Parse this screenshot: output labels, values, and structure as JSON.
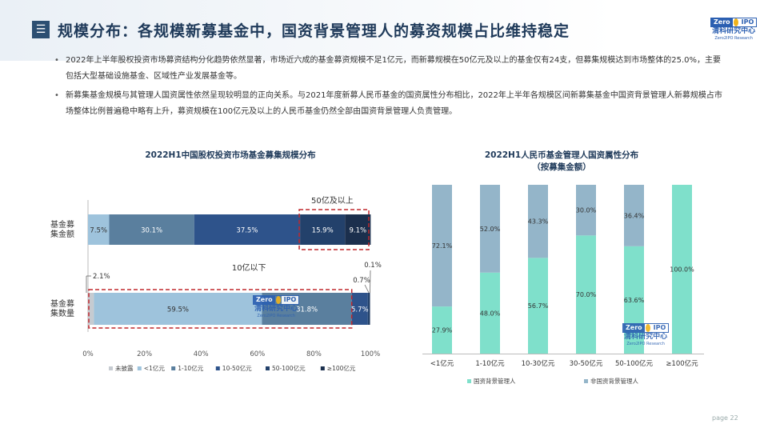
{
  "header": {
    "menu_icon": "menu-icon",
    "title": "规模分布：各规模新募基金中，国资背景管理人的募资规模占比维持稳定",
    "logo": {
      "badge_left": "Zero",
      "badge_right": "IPO",
      "name_cn": "清科研究中心",
      "name_en": "Zero2IPO Research"
    }
  },
  "bullets": [
    "2022年上半年股权投资市场募资结构分化趋势依然显著，市场近六成的基金募资规模不足1亿元，而新募规模在50亿元及以上的基金仅有24支，但募集规模达到市场整体的25.0%，主要包括大型基础设施基金、区域性产业发展基金等。",
    "新募集基金规模与其管理人国资属性依然呈现较明显的正向关系。与2021年度新募人民币基金的国资属性分布相比，2022年上半年各规模区间新募集基金中国资背景管理人新募规模占市场整体比例普遍稳中略有上升，募资规模在100亿元及以上的人民币基金仍然全部由国资背景管理人负责管理。"
  ],
  "footer": {
    "page_label": "page",
    "page_number": "22"
  },
  "chart_data": [
    {
      "type": "bar",
      "orientation": "horizontal",
      "stacked": true,
      "title": "2022H1中国股权投资市场基金募集规模分布",
      "categories": [
        "基金募集金额",
        "基金募集数量"
      ],
      "category_labels": [
        [
          "基金募",
          "集金额"
        ],
        [
          "基金募",
          "集数量"
        ]
      ],
      "series": [
        {
          "name": "未披露",
          "values": [
            0.0,
            2.1
          ],
          "color": "#c6cbd1"
        },
        {
          "name": "<1亿元",
          "values": [
            7.5,
            59.5
          ],
          "color": "#9ec3dc"
        },
        {
          "name": "1-10亿元",
          "values": [
            30.1,
            31.8
          ],
          "color": "#5a7f9e"
        },
        {
          "name": "10-50亿元",
          "values": [
            37.5,
            5.7
          ],
          "color": "#2e538b"
        },
        {
          "name": "50-100亿元",
          "values": [
            15.9,
            0.7
          ],
          "color": "#23416b"
        },
        {
          "name": "≥100亿元",
          "values": [
            9.1,
            0.1
          ],
          "color": "#1b2f4d"
        }
      ],
      "data_labels": [
        [
          "",
          "7.5%",
          "30.1%",
          "37.5%",
          "15.9%",
          "9.1%"
        ],
        [
          "2.1%",
          "59.5%",
          "31.8%",
          "5.7%",
          "0.7%",
          "0.1%"
        ]
      ],
      "x_ticks": [
        "0%",
        "20%",
        "40%",
        "60%",
        "80%",
        "100%"
      ],
      "xlim": [
        0,
        100
      ],
      "annotations": [
        "50亿及以上",
        "10亿以下"
      ],
      "legend_position": "bottom"
    },
    {
      "type": "bar",
      "stacked": true,
      "title": "2022H1人民币基金管理人国资属性分布",
      "subtitle": "（按募集金额）",
      "categories": [
        "<1亿元",
        "1-10亿元",
        "10-30亿元",
        "30-50亿元",
        "50-100亿元",
        "≥100亿元"
      ],
      "series": [
        {
          "name": "国资背景管理人",
          "values": [
            27.9,
            48.0,
            56.7,
            70.0,
            63.6,
            100.0
          ],
          "labels": [
            "27.9%",
            "48.0%",
            "56.7%",
            "70.0%",
            "63.6%",
            "100.0%"
          ],
          "color": "#7fe0cb"
        },
        {
          "name": "非国资背景管理人",
          "values": [
            72.1,
            52.0,
            43.3,
            30.0,
            36.4,
            0.0
          ],
          "labels": [
            "72.1%",
            "52.0%",
            "43.3%",
            "30.0%",
            "36.4%",
            ""
          ],
          "color": "#94b5c9"
        }
      ],
      "ylim": [
        0,
        100
      ],
      "legend_position": "bottom"
    }
  ]
}
